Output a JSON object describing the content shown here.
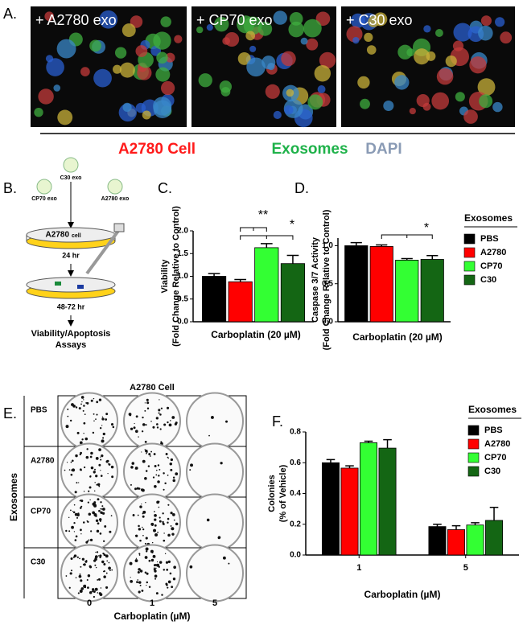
{
  "panel_labels": [
    "A.",
    "B.",
    "C.",
    "D.",
    "E.",
    "F."
  ],
  "panel_a": {
    "images": [
      "+ A2780 exo",
      "+ CP70 exo",
      "+ C30 exo"
    ],
    "legend": [
      {
        "text": "A2780 Cell",
        "color": "#ff1a1a"
      },
      {
        "text": "Exosomes",
        "color": "#1fb24a"
      },
      {
        "text": "DAPI",
        "color": "#8a9bb5"
      }
    ]
  },
  "panel_b": {
    "exosomes": [
      "C30 exo",
      "CP70 exo",
      "A2780 exo"
    ],
    "dish_label": "A2780",
    "dish_sub": "cell",
    "steps": [
      "24 hr",
      "48-72 hr"
    ],
    "assay": [
      "Viability/Apoptosis",
      "Assays"
    ]
  },
  "panel_e": {
    "title": "A2780 Cell",
    "ylabel": "Exosomes",
    "rows": [
      "PBS",
      "A2780",
      "CP70",
      "C30"
    ],
    "columns": [
      "0",
      "1",
      "5"
    ],
    "xlabel": "Carboplatin (µM)"
  },
  "chart_data": [
    {
      "type": "bar",
      "xlabel": "Carboplatin (20 µM)",
      "ylabel": [
        "Viability",
        "(Fold Change Relative to Control)"
      ],
      "categories": [
        null
      ],
      "series": [
        {
          "color": "#000000",
          "values": [
            1.0
          ],
          "errors": [
            0.06
          ]
        },
        {
          "color": "#ff0000",
          "values": [
            0.88
          ],
          "errors": [
            0.05
          ]
        },
        {
          "color": "#33ff33",
          "values": [
            1.63
          ],
          "errors": [
            0.09
          ]
        },
        {
          "color": "#146614",
          "values": [
            1.28
          ],
          "errors": [
            0.18
          ]
        }
      ],
      "ylim": [
        0,
        2.0
      ],
      "yticks": [
        {
          "value": 0,
          "label": "0.0"
        },
        {
          "value": 0.5,
          "label": "0.5"
        },
        {
          "value": 1,
          "label": "1.0"
        },
        {
          "value": 1.5,
          "label": "1.5"
        },
        {
          "value": 2,
          "label": "2.0"
        }
      ],
      "annotations": [
        "**",
        "*"
      ],
      "legend": false
    },
    {
      "type": "bar",
      "xlabel": "Carboplatin (20 µM)",
      "ylabel": [
        "Caspase 3/7 Activity",
        "(Fold Change Relative to Control)"
      ],
      "categories": [
        null
      ],
      "series": [
        {
          "name": "PBS",
          "color": "#000000",
          "values": [
            1.0
          ],
          "errors": [
            0.04
          ]
        },
        {
          "name": "A2780",
          "color": "#ff0000",
          "values": [
            0.99
          ],
          "errors": [
            0.02
          ]
        },
        {
          "name": "CP70",
          "color": "#33ff33",
          "values": [
            0.81
          ],
          "errors": [
            0.02
          ]
        },
        {
          "name": "C30",
          "color": "#146614",
          "values": [
            0.82
          ],
          "errors": [
            0.05
          ]
        }
      ],
      "ylim": [
        0,
        1.1
      ],
      "yticks": [
        {
          "value": 0,
          "label": "0.0"
        },
        {
          "value": 0.5,
          "label": "0.5"
        },
        {
          "value": 1,
          "label": "1.0"
        }
      ],
      "annotations": [
        "*"
      ],
      "legend": true,
      "legend_title": "Exosomes"
    },
    {
      "type": "bar",
      "xlabel": "Carboplatin (µM)",
      "ylabel": [
        "Colonies",
        "(% of Vehicle)"
      ],
      "categories": [
        "1",
        "5"
      ],
      "series": [
        {
          "name": "PBS",
          "color": "#000000",
          "values": [
            0.6,
            0.185
          ],
          "errors": [
            0.02,
            0.015
          ]
        },
        {
          "name": "A2780",
          "color": "#ff0000",
          "values": [
            0.565,
            0.165
          ],
          "errors": [
            0.015,
            0.025
          ]
        },
        {
          "name": "CP70",
          "color": "#33ff33",
          "values": [
            0.73,
            0.195
          ],
          "errors": [
            0.01,
            0.015
          ]
        },
        {
          "name": "C30",
          "color": "#146614",
          "values": [
            0.695,
            0.225
          ],
          "errors": [
            0.055,
            0.085
          ]
        }
      ],
      "ylim": [
        0,
        0.8
      ],
      "yticks": [
        {
          "value": 0,
          "label": "0.0"
        },
        {
          "value": 0.2,
          "label": "0.2"
        },
        {
          "value": 0.4,
          "label": "0.4"
        },
        {
          "value": 0.6,
          "label": "0.6"
        },
        {
          "value": 0.8,
          "label": "0.8"
        }
      ],
      "legend": true,
      "legend_title": "Exosomes"
    }
  ]
}
